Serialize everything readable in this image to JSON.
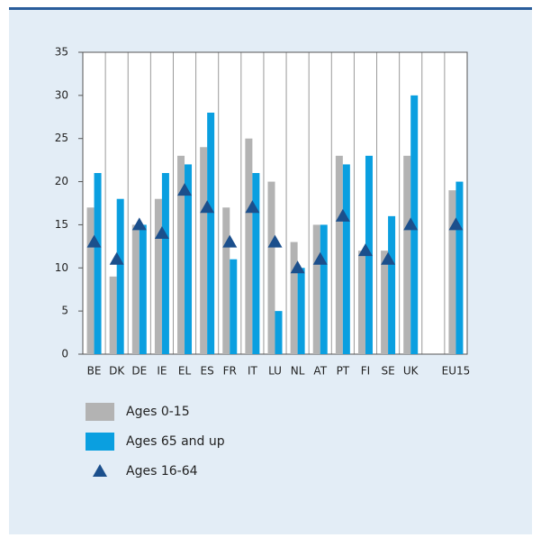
{
  "chart_data": {
    "type": "bar",
    "categories": [
      "BE",
      "DK",
      "DE",
      "IE",
      "EL",
      "ES",
      "FR",
      "IT",
      "LU",
      "NL",
      "AT",
      "PT",
      "FI",
      "SE",
      "UK",
      null,
      "EU15"
    ],
    "series": [
      {
        "name": "Ages 0-15",
        "color": "#b3b3b3",
        "type": "bar",
        "values": [
          17,
          9,
          15,
          18,
          23,
          24,
          17,
          25,
          20,
          13,
          15,
          23,
          12,
          12,
          23,
          null,
          19
        ]
      },
      {
        "name": "Ages 65 and up",
        "color": "#0a9fe0",
        "type": "bar",
        "values": [
          21,
          18,
          15,
          21,
          22,
          28,
          11,
          21,
          5,
          10,
          15,
          22,
          23,
          16,
          30,
          null,
          20
        ]
      },
      {
        "name": "Ages 16-64",
        "color": "#1b4f8c",
        "type": "triangle",
        "values": [
          13,
          11,
          15,
          14,
          19,
          17,
          13,
          17,
          13,
          10,
          11,
          16,
          12,
          11,
          15,
          null,
          15
        ]
      }
    ],
    "ylim": [
      0,
      35
    ],
    "yticks": [
      0,
      5,
      10,
      15,
      20,
      25,
      30,
      35
    ],
    "grid": "x"
  }
}
